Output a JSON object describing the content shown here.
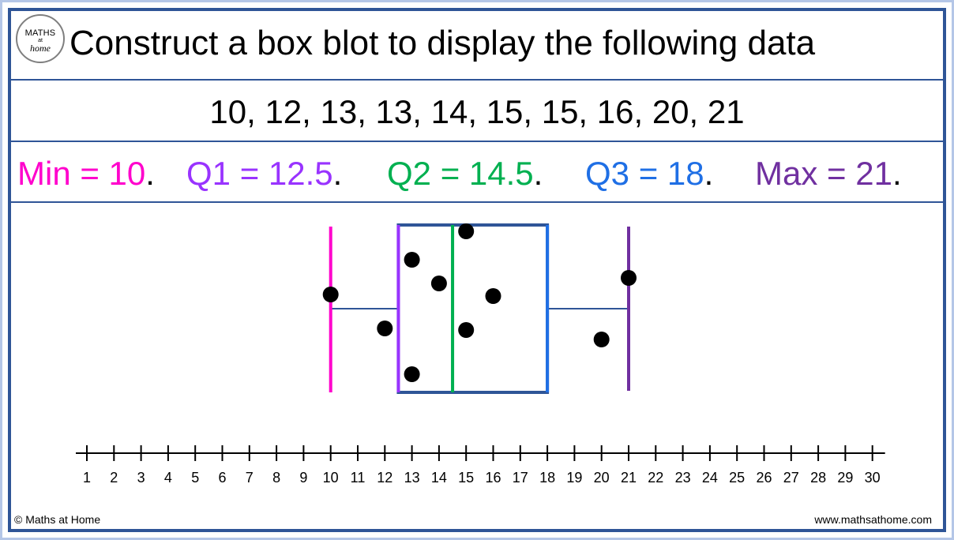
{
  "title": "Construct a box blot to display the following data",
  "logo": {
    "top": "MATHS",
    "middle": "at",
    "bottom": "home"
  },
  "dataset_text": "10, 12, 13, 13, 14, 15, 15, 16, 20, 21",
  "stats": {
    "min": {
      "label": "Min = 10",
      "color": "#ff00cc"
    },
    "q1": {
      "label": "Q1 = 12.5",
      "color": "#9933ff"
    },
    "q2": {
      "label": "Q2 = 14.5",
      "color": "#00b050"
    },
    "q3": {
      "label": "Q3 = 18",
      "color": "#1f6fe5"
    },
    "max": {
      "label": "Max = 21",
      "color": "#7030a0"
    },
    "punctuation": "."
  },
  "footer": {
    "left": "© Maths at Home",
    "right": "www.mathsathome.com"
  },
  "chart_data": {
    "type": "box",
    "values": [
      10,
      12,
      13,
      13,
      14,
      15,
      15,
      16,
      20,
      21
    ],
    "min": 10,
    "q1": 12.5,
    "median": 14.5,
    "q3": 18,
    "max": 21,
    "axis": {
      "min": 1,
      "max": 30,
      "step": 1
    },
    "tick_labels": [
      "1",
      "2",
      "3",
      "4",
      "5",
      "6",
      "7",
      "8",
      "9",
      "10",
      "11",
      "12",
      "13",
      "14",
      "15",
      "16",
      "17",
      "18",
      "19",
      "20",
      "21",
      "22",
      "23",
      "24",
      "25",
      "26",
      "27",
      "28",
      "29",
      "30"
    ],
    "box_color": "#2f5597",
    "point_color": "#000000"
  }
}
